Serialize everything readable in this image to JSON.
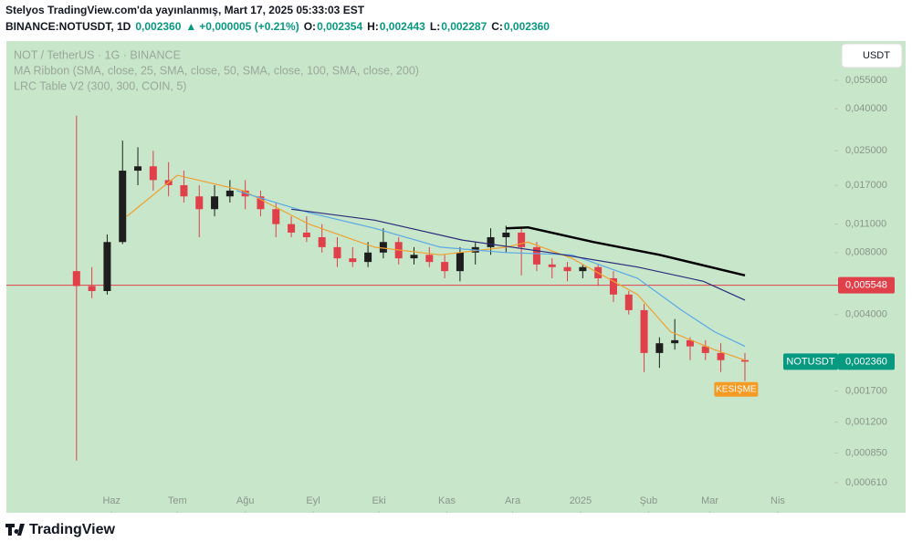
{
  "header": {
    "published": "Stelyos TradingView.com'da yayınlanmış, Mart 17, 2025 05:33:03 EST",
    "symbol": "BINANCE:NOTUSDT, 1D",
    "price": "0,002360",
    "arrow": "▲",
    "change": "+0,000005 (+0.21%)",
    "ohlc": [
      {
        "label": "O:",
        "value": "0,002354"
      },
      {
        "label": "H:",
        "value": "0,002443"
      },
      {
        "label": "L:",
        "value": "0,002287"
      },
      {
        "label": "C:",
        "value": "0,002360"
      }
    ]
  },
  "currency_button": "USDT",
  "footer": {
    "brand": "TradingView"
  },
  "chart_data": {
    "type": "candlestick",
    "title": "NOT / TetherUS · 1G · BINANCE",
    "indicators": [
      "MA Ribbon (SMA, close, 25, SMA, close, 50, SMA, close, 100, SMA, close, 200)",
      "LRC Table V2 (300, 300, COIN, 5)"
    ],
    "log_scale": true,
    "background": "#c8e6c9",
    "up_color": "#1e1e1e",
    "down_color": "#e0404a",
    "xlim": [
      -48,
      329
    ],
    "xticks": [
      {
        "value": 0,
        "label": "Haz"
      },
      {
        "value": 30,
        "label": "Tem"
      },
      {
        "value": 61,
        "label": "Ağu"
      },
      {
        "value": 92,
        "label": "Eyl"
      },
      {
        "value": 122,
        "label": "Eki"
      },
      {
        "value": 153,
        "label": "Kas"
      },
      {
        "value": 183,
        "label": "Ara"
      },
      {
        "value": 214,
        "label": "2025"
      },
      {
        "value": 245,
        "label": "Şub"
      },
      {
        "value": 273,
        "label": "Mar"
      },
      {
        "value": 304,
        "label": "Nis"
      }
    ],
    "ylim": [
      0.000435,
      0.0853
    ],
    "yticks": [
      {
        "value": 0.055,
        "label": "0,055000"
      },
      {
        "value": 0.04,
        "label": "0,040000"
      },
      {
        "value": 0.025,
        "label": "0,025000"
      },
      {
        "value": 0.017,
        "label": "0,017000"
      },
      {
        "value": 0.011,
        "label": "0,011000"
      },
      {
        "value": 0.008,
        "label": "0,008000"
      },
      {
        "value": 0.004,
        "label": "0,004000"
      },
      {
        "value": 0.0017,
        "label": "0,001700"
      },
      {
        "value": 0.0012,
        "label": "0,001200"
      },
      {
        "value": 0.00085,
        "label": "0,000850"
      },
      {
        "value": 0.00061,
        "label": "0,000610"
      }
    ],
    "x": [
      -16,
      -9,
      -2,
      5,
      12,
      19,
      26,
      33,
      40,
      47,
      54,
      61,
      68,
      75,
      82,
      89,
      96,
      103,
      110,
      117,
      124,
      131,
      138,
      145,
      152,
      159,
      166,
      173,
      180,
      187,
      194,
      201,
      208,
      215,
      222,
      229,
      236,
      243,
      250,
      257,
      264,
      271,
      278,
      289
    ],
    "open": [
      0.0065,
      0.0055,
      0.0052,
      0.009,
      0.02,
      0.021,
      0.018,
      0.017,
      0.015,
      0.013,
      0.015,
      0.016,
      0.015,
      0.013,
      0.011,
      0.01,
      0.0095,
      0.0085,
      0.0075,
      0.0072,
      0.008,
      0.009,
      0.0075,
      0.0078,
      0.0072,
      0.0065,
      0.008,
      0.0085,
      0.0095,
      0.01,
      0.0085,
      0.007,
      0.0068,
      0.0065,
      0.0068,
      0.006,
      0.005,
      0.0042,
      0.0026,
      0.0029,
      0.003,
      0.0028,
      0.0026,
      0.0024
    ],
    "high": [
      0.037,
      0.0068,
      0.0098,
      0.028,
      0.026,
      0.025,
      0.022,
      0.02,
      0.017,
      0.017,
      0.018,
      0.018,
      0.016,
      0.014,
      0.012,
      0.012,
      0.011,
      0.0095,
      0.0085,
      0.009,
      0.0105,
      0.0095,
      0.0085,
      0.0085,
      0.0078,
      0.0085,
      0.009,
      0.0105,
      0.0108,
      0.0105,
      0.009,
      0.0075,
      0.0072,
      0.007,
      0.007,
      0.0065,
      0.0052,
      0.0045,
      0.0031,
      0.0038,
      0.0031,
      0.003,
      0.0029,
      0.0026
    ],
    "low": [
      0.00078,
      0.0048,
      0.005,
      0.0088,
      0.017,
      0.016,
      0.015,
      0.014,
      0.0095,
      0.012,
      0.014,
      0.013,
      0.012,
      0.0095,
      0.0095,
      0.009,
      0.008,
      0.0068,
      0.0068,
      0.0068,
      0.0075,
      0.007,
      0.007,
      0.0068,
      0.006,
      0.0058,
      0.007,
      0.0078,
      0.008,
      0.0062,
      0.0065,
      0.006,
      0.0058,
      0.006,
      0.0055,
      0.0046,
      0.004,
      0.0021,
      0.0022,
      0.0027,
      0.0024,
      0.0024,
      0.0021,
      0.0019
    ],
    "close": [
      0.0055,
      0.0052,
      0.009,
      0.02,
      0.021,
      0.018,
      0.017,
      0.015,
      0.013,
      0.015,
      0.016,
      0.015,
      0.013,
      0.011,
      0.01,
      0.0095,
      0.0085,
      0.0075,
      0.0072,
      0.008,
      0.009,
      0.0075,
      0.0078,
      0.0072,
      0.0065,
      0.008,
      0.0085,
      0.0095,
      0.01,
      0.0085,
      0.007,
      0.0068,
      0.0065,
      0.0068,
      0.006,
      0.005,
      0.0042,
      0.0026,
      0.0029,
      0.003,
      0.0028,
      0.0026,
      0.0024,
      0.00236
    ],
    "lines": [
      {
        "color": "#f0a030",
        "x": [
          7,
          30,
          60,
          90,
          120,
          150,
          180,
          190,
          210,
          240,
          255,
          275,
          289
        ],
        "values": [
          0.012,
          0.019,
          0.016,
          0.011,
          0.0085,
          0.0078,
          0.0085,
          0.009,
          0.0075,
          0.005,
          0.0033,
          0.0027,
          0.0024
        ]
      },
      {
        "color": "#5aa8e8",
        "x": [
          57,
          90,
          120,
          150,
          180,
          210,
          240,
          260,
          275,
          289
        ],
        "values": [
          0.016,
          0.0125,
          0.0105,
          0.0085,
          0.008,
          0.0078,
          0.006,
          0.0042,
          0.0033,
          0.0028
        ]
      },
      {
        "color": "#2a2a7a",
        "x": [
          82,
          120,
          160,
          200,
          240,
          270,
          289
        ],
        "values": [
          0.013,
          0.0115,
          0.0092,
          0.008,
          0.0068,
          0.0058,
          0.0047
        ]
      },
      {
        "color": "#000000",
        "width": 2.5,
        "x": [
          180,
          190,
          220,
          250,
          289
        ],
        "values": [
          0.0105,
          0.0106,
          0.009,
          0.0078,
          0.0062
        ]
      }
    ],
    "hline": {
      "value": 0.005548,
      "label": "0,005548",
      "color": "#e0404a"
    },
    "last_price": {
      "name": "NOTUSDT",
      "value": 0.00236,
      "label": "0,002360",
      "color": "#089981"
    },
    "annotation": {
      "text": "KESİŞME",
      "x": 285,
      "value": 0.00173,
      "color": "#f59a23"
    }
  }
}
